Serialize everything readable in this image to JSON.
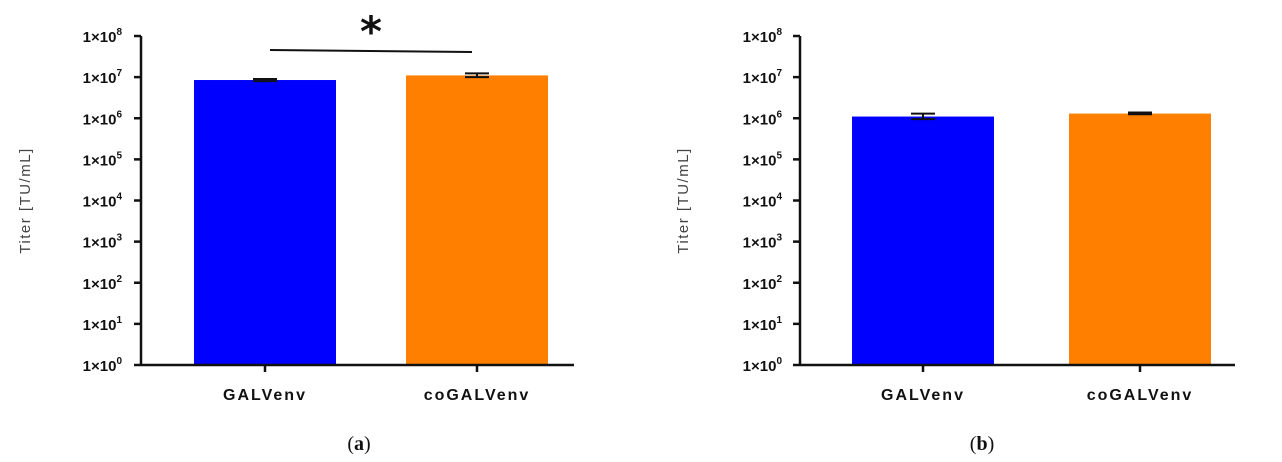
{
  "colors": {
    "GALVenv": "#0000ff",
    "coGALVenv": "#ff8000",
    "axis": "#111111"
  },
  "chart_data": [
    {
      "type": "bar",
      "panel_label": "a",
      "ylabel": "Titer [TU/mL]",
      "yscale": "log",
      "ylim": [
        1,
        100000000
      ],
      "yticks": [
        {
          "value": 1,
          "label_base": "1×10",
          "label_exp": "0"
        },
        {
          "value": 10,
          "label_base": "1×10",
          "label_exp": "1"
        },
        {
          "value": 100,
          "label_base": "1×10",
          "label_exp": "2"
        },
        {
          "value": 1000,
          "label_base": "1×10",
          "label_exp": "3"
        },
        {
          "value": 10000,
          "label_base": "1×10",
          "label_exp": "4"
        },
        {
          "value": 100000,
          "label_base": "1×10",
          "label_exp": "5"
        },
        {
          "value": 1000000,
          "label_base": "1×10",
          "label_exp": "6"
        },
        {
          "value": 10000000,
          "label_base": "1×10",
          "label_exp": "7"
        },
        {
          "value": 100000000,
          "label_base": "1×10",
          "label_exp": "8"
        }
      ],
      "categories": [
        "GALVenv",
        "coGALVenv"
      ],
      "values": [
        8500000,
        11000000
      ],
      "error_upper": [
        9000000,
        12300000
      ],
      "error_lower": [
        8000000,
        10000000
      ],
      "significance": {
        "between": [
          "GALVenv",
          "coGALVenv"
        ],
        "marker": "*"
      }
    },
    {
      "type": "bar",
      "panel_label": "b",
      "ylabel": "Titer [TU/mL]",
      "yscale": "log",
      "ylim": [
        1,
        100000000
      ],
      "yticks": [
        {
          "value": 1,
          "label_base": "1×10",
          "label_exp": "0"
        },
        {
          "value": 10,
          "label_base": "1×10",
          "label_exp": "1"
        },
        {
          "value": 100,
          "label_base": "1×10",
          "label_exp": "2"
        },
        {
          "value": 1000,
          "label_base": "1×10",
          "label_exp": "3"
        },
        {
          "value": 10000,
          "label_base": "1×10",
          "label_exp": "4"
        },
        {
          "value": 100000,
          "label_base": "1×10",
          "label_exp": "5"
        },
        {
          "value": 1000000,
          "label_base": "1×10",
          "label_exp": "6"
        },
        {
          "value": 10000000,
          "label_base": "1×10",
          "label_exp": "7"
        },
        {
          "value": 100000000,
          "label_base": "1×10",
          "label_exp": "8"
        }
      ],
      "categories": [
        "GALVenv",
        "coGALVenv"
      ],
      "values": [
        1100000,
        1300000
      ],
      "error_upper": [
        1300000,
        1380000
      ],
      "error_lower": [
        950000,
        1250000
      ],
      "significance": null
    }
  ]
}
